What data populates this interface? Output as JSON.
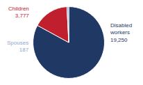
{
  "chart_data": {
    "type": "pie",
    "categories": [
      "Disabled\nworkers",
      "Children",
      "Spouses"
    ],
    "values": [
      19250,
      3777,
      187
    ],
    "value_labels": [
      "19,250",
      "3,777",
      "187"
    ],
    "colors": [
      "#1F3864",
      "#C0202E",
      "#8FA8C8"
    ],
    "data_labels": true
  }
}
